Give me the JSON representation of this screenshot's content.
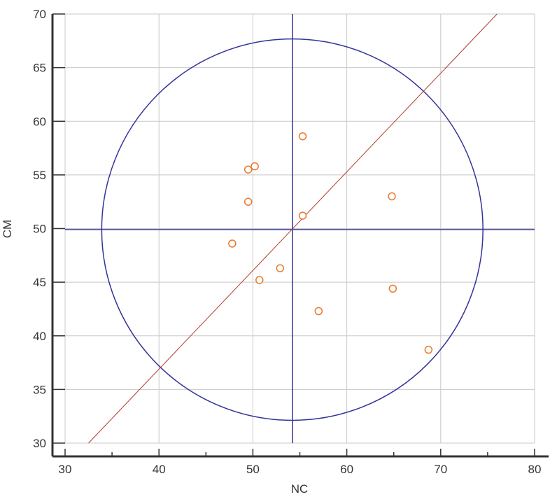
{
  "chart_data": {
    "type": "scatter",
    "title": "",
    "xlabel": "NC",
    "ylabel": "CM",
    "xlim": [
      30,
      80
    ],
    "ylim": [
      30,
      70
    ],
    "x_ticks": [
      30,
      40,
      50,
      60,
      70,
      80
    ],
    "x_minor_ticks": [
      35,
      45,
      55,
      65,
      75
    ],
    "y_ticks": [
      30,
      35,
      40,
      45,
      50,
      55,
      60,
      65,
      70
    ],
    "grid": true,
    "series": [
      {
        "marker": "open-circle",
        "color": "#e8782a",
        "points": [
          {
            "x": 55.3,
            "y": 58.6
          },
          {
            "x": 50.2,
            "y": 55.8
          },
          {
            "x": 49.5,
            "y": 55.5
          },
          {
            "x": 49.5,
            "y": 52.5
          },
          {
            "x": 64.8,
            "y": 53.0
          },
          {
            "x": 55.3,
            "y": 51.2
          },
          {
            "x": 47.8,
            "y": 48.6
          },
          {
            "x": 52.9,
            "y": 46.3
          },
          {
            "x": 50.7,
            "y": 45.2
          },
          {
            "x": 64.9,
            "y": 44.4
          },
          {
            "x": 57.0,
            "y": 42.3
          },
          {
            "x": 68.7,
            "y": 38.7
          }
        ]
      }
    ],
    "reference_lines": {
      "vertical_x": 54.2,
      "horizontal_y": 49.9,
      "circle": {
        "center_x": 54.2,
        "center_y": 49.9,
        "radius_x": 20.3
      },
      "identity_line": {
        "from": [
          32.5,
          30
        ],
        "to": [
          76,
          70
        ]
      }
    },
    "colors": {
      "reference": "#333399",
      "identity_line": "#b03a2e",
      "grid": "#c8c8c8",
      "axis": "#333333"
    }
  }
}
